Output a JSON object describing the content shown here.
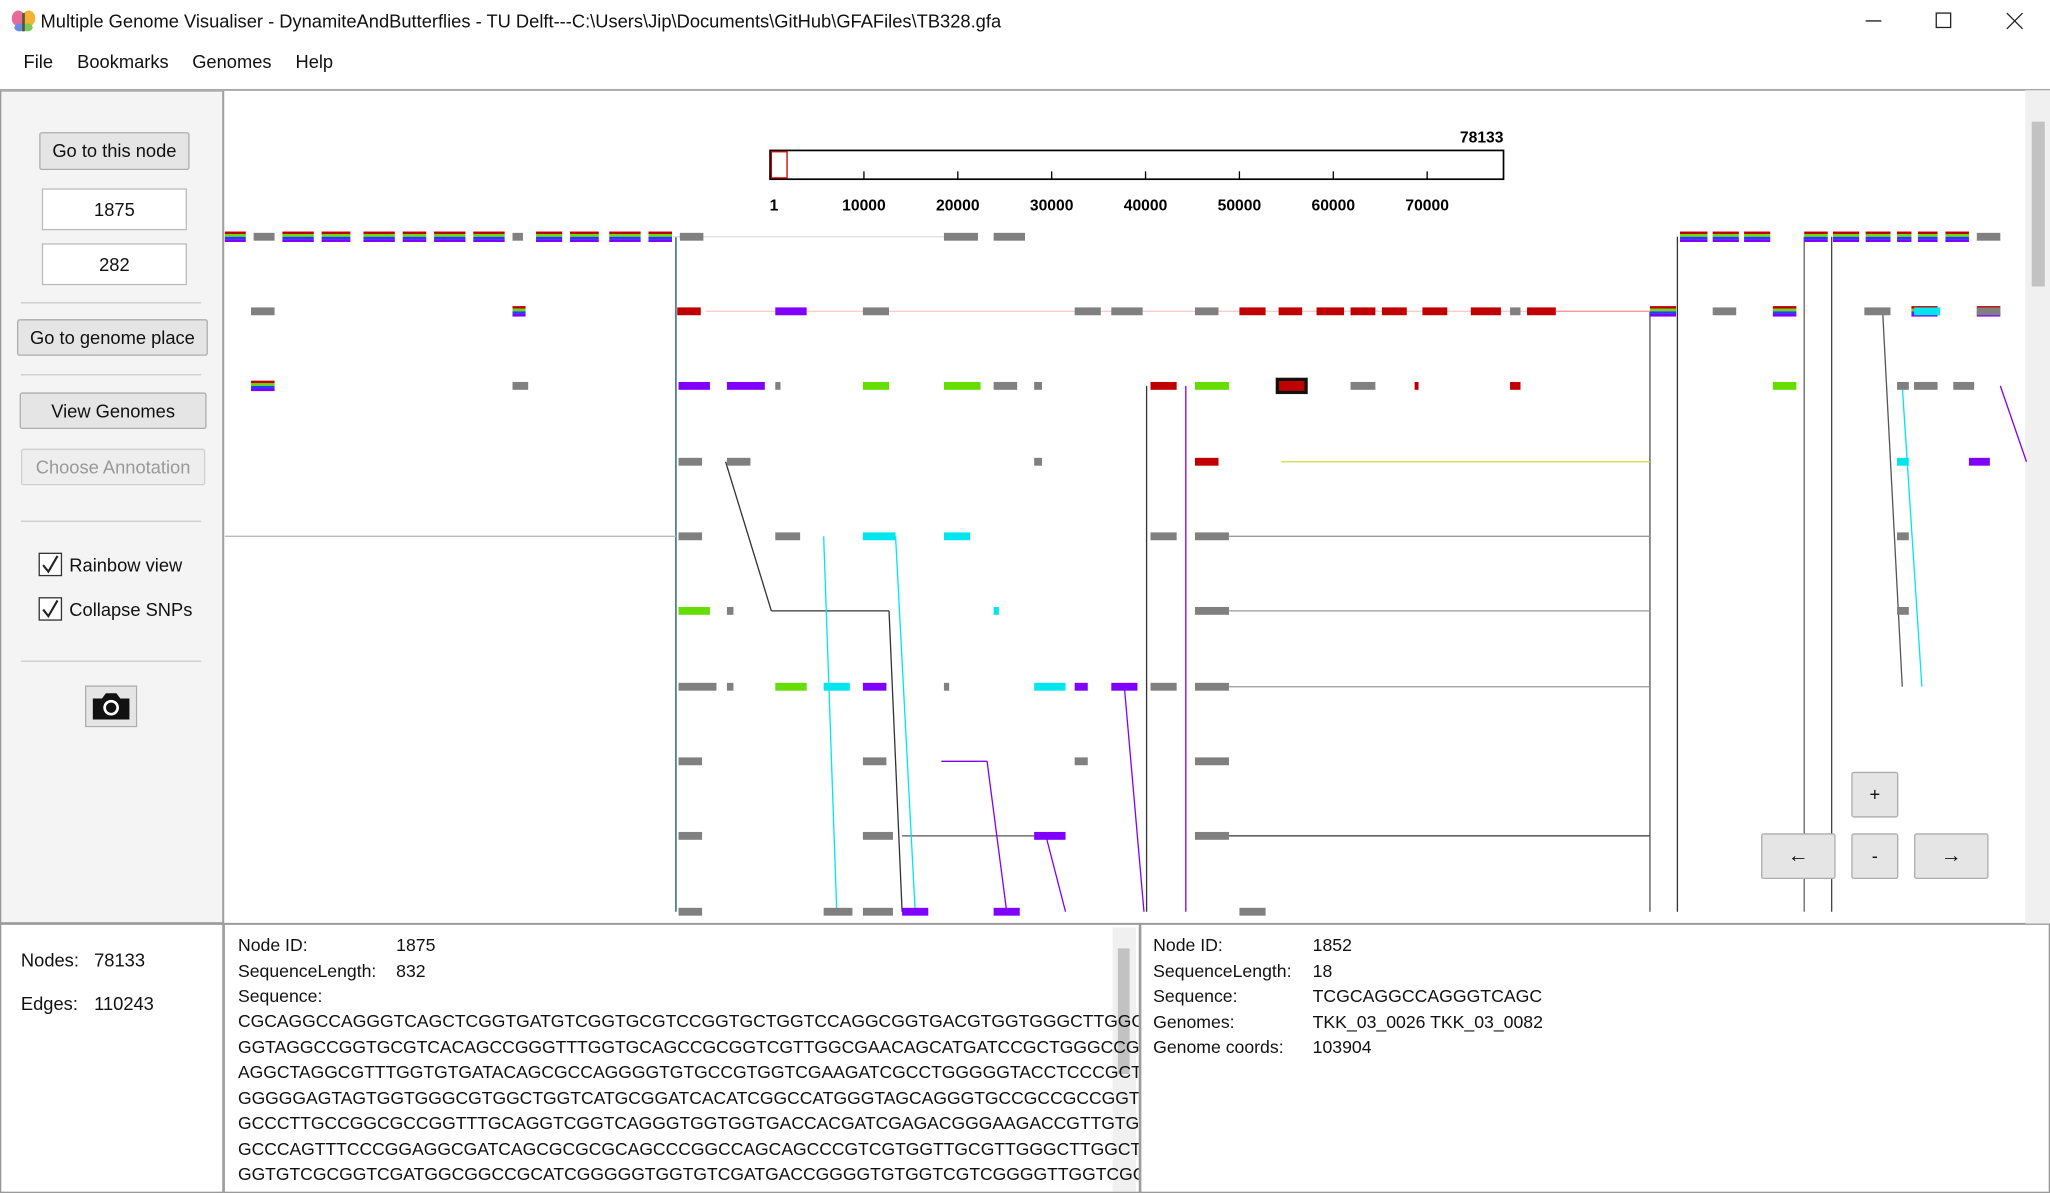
{
  "window": {
    "title": "Multiple Genome Visualiser - DynamiteAndButterflies  - TU Delft---C:\\Users\\Jip\\Documents\\GitHub\\GFAFiles\\TB328.gfa"
  },
  "menu": [
    "File",
    "Bookmarks",
    "Genomes",
    "Help"
  ],
  "sidebar": {
    "go_node": "Go to this node",
    "node_field": "1875",
    "radius_field": "282",
    "go_genome": "Go to genome place",
    "view_genomes": "View Genomes",
    "choose_annotation": "Choose Annotation",
    "rainbow": "Rainbow view",
    "collapse": "Collapse SNPs"
  },
  "ruler": {
    "max": 78133,
    "ticks": [
      1,
      10000,
      20000,
      30000,
      40000,
      50000,
      60000,
      70000
    ]
  },
  "zoom": {
    "plus": "+",
    "minus": "-",
    "left": "←",
    "right": "→"
  },
  "stats": {
    "nodes_label": "Nodes:",
    "nodes": 78133,
    "edges_label": "Edges:",
    "edges": 110243
  },
  "info_left": {
    "rows": [
      [
        "Node ID:",
        "1875"
      ],
      [
        "SequenceLength:",
        "832"
      ]
    ],
    "sequence_label": "Sequence:",
    "sequence": [
      "CGCAGGCCAGGGTCAGCTCGGTGATGTCGGTGCGTCCGGTGCTGGTCCAGGCGGTGACGTGGTGGGCTTGGCTGT",
      "GGTAGGCCGGTGCGTCACAGCCGGGTTTGGTGCAGCCGCGGTCGTTGGCGAACAGCATGATCCGCTGGGCCGGGG",
      "AGGCTAGGCGTTTGGTGTGATACAGCGCCAGGGGTGTGCCGTGGTCGAAGATCGCCTGGGGGTACCTCCCGCTTGC",
      "GGGGGAGTAGTGGTGGGCGTGGCTGGTCATGCGGATCACATCGGCCATGGGTAGCAGGGTGCCGCCGCCGGTGAA",
      "GCCCTTGCCGGCGCCGGTTTGCAGGTCGGTCAGGGTGGTGGTGACCACGATCGAGACGGGAAGACCGTTGTGTTG",
      "GCCCAGTTTCCCGGAGGCGATCAGCGCGCGCAGCCCGGCCAGCAGCCCGTCGTGGTTGCGTTGGGCTTGGCTGCG",
      "GGTGTCGCGGTCGATGGCGGCCGCATCGGGGGTGGTGTCGATGACCGGGGTGTGGTCGTCGGGGTTGGTCGCGCC"
    ]
  },
  "info_right": {
    "rows": [
      [
        "Node ID:",
        "1852"
      ],
      [
        "SequenceLength:",
        "18"
      ],
      [
        "Sequence:",
        "TCGCAGGCCAGGGTCAGC"
      ],
      [
        "Genomes:",
        "TKK_03_0026 TKK_03_0082"
      ],
      [
        "Genome coords:",
        "103904"
      ]
    ]
  }
}
